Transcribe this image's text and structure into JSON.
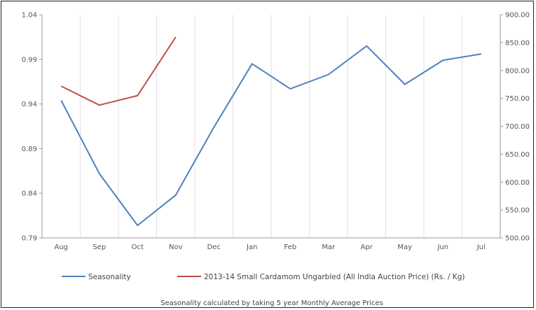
{
  "chart_data": {
    "type": "line",
    "categories": [
      "Aug",
      "Sep",
      "Oct",
      "Nov",
      "Dec",
      "Jan",
      "Feb",
      "Mar",
      "Apr",
      "May",
      "Jun",
      "Jul"
    ],
    "y_left": {
      "range": [
        0.79,
        1.04
      ],
      "ticks": [
        "1.04",
        "0.99",
        "0.94",
        "0.89",
        "0.84",
        "0.79"
      ],
      "tick_values": [
        1.04,
        0.99,
        0.94,
        0.89,
        0.84,
        0.79
      ]
    },
    "y_right": {
      "range": [
        500,
        900
      ],
      "ticks": [
        "900.00",
        "850.00",
        "800.00",
        "750.00",
        "700.00",
        "650.00",
        "600.00",
        "550.00",
        "500.00"
      ],
      "tick_values": [
        900,
        850,
        800,
        750,
        700,
        650,
        600,
        550,
        500
      ]
    },
    "series": [
      {
        "name": "Seasonality",
        "axis": "left",
        "color": "#4f81bd",
        "values": [
          0.944,
          0.862,
          0.804,
          0.838,
          0.914,
          0.985,
          0.957,
          0.973,
          1.005,
          0.962,
          0.989,
          0.996
        ]
      },
      {
        "name": "2013-14 Small Cardamom Ungarbled (All India Auction Price) (Rs. / Kg)",
        "axis": "right",
        "color": "#c0504d",
        "values": [
          772,
          738,
          755,
          860,
          null,
          null,
          null,
          null,
          null,
          null,
          null,
          null
        ]
      }
    ],
    "legend_position": "bottom",
    "caption": "Seasonality calculated by taking 5 year Monthly Average Prices",
    "grid": "vertical category lines"
  }
}
